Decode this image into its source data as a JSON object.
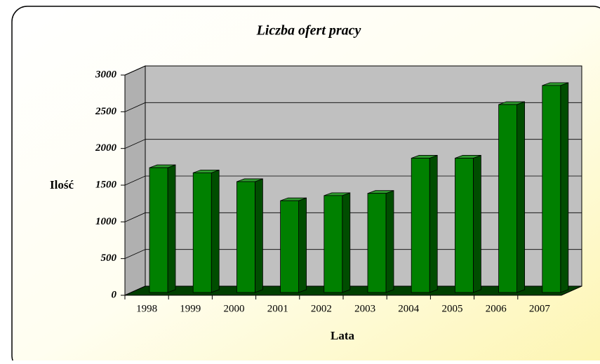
{
  "chart_data": {
    "type": "bar3d",
    "title": "Liczba ofert pracy",
    "x_label": "Lata",
    "y_label": "Ilość",
    "categories": [
      "1998",
      "1999",
      "2000",
      "2001",
      "2002",
      "2003",
      "2004",
      "2005",
      "2006",
      "2007"
    ],
    "values": [
      1700,
      1630,
      1510,
      1250,
      1320,
      1350,
      1830,
      1830,
      2560,
      2820
    ],
    "color": "#008000",
    "ylim": [
      0,
      3000
    ],
    "yticks": [
      0,
      500,
      1000,
      1500,
      2000,
      2500,
      3000
    ],
    "grid": true
  }
}
